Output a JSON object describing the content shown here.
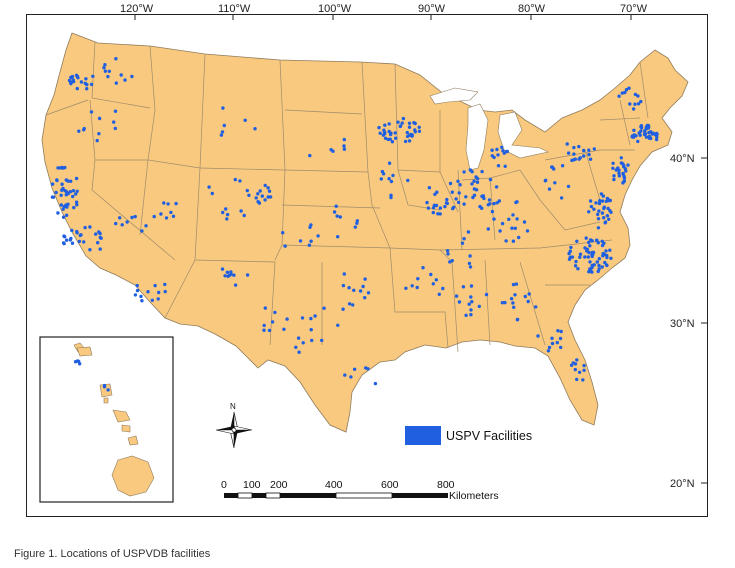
{
  "figure": {
    "caption": "Figure 1. Locations of USPVDB facilities"
  },
  "axes": {
    "longitude_ticks": [
      "120°W",
      "110°W",
      "100°W",
      "90°W",
      "80°W",
      "70°W"
    ],
    "latitude_ticks": [
      "40°N",
      "30°N",
      "20°N"
    ]
  },
  "legend": {
    "label": "USPV Facilities",
    "color": "#1f5fe0"
  },
  "scale_bar": {
    "ticks": [
      "0",
      "100",
      "200",
      "400",
      "600",
      "800"
    ],
    "unit": "Kilometers"
  },
  "north_arrow": {
    "label": "N"
  },
  "colors": {
    "land": "#f8c97f",
    "border": "#9b8868",
    "facility": "#1f5fe0",
    "frame": "#222222"
  }
}
